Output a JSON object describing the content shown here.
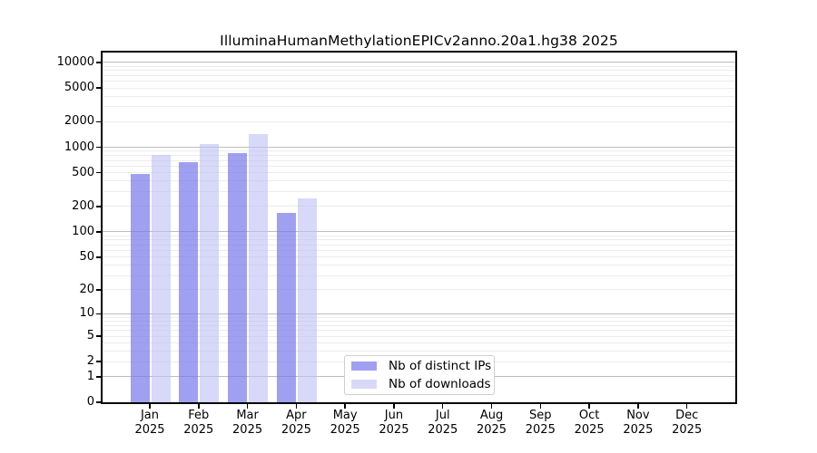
{
  "title": "IlluminaHumanMethylationEPICv2anno.20a1.hg38 2025",
  "chart_data": {
    "type": "bar",
    "title": "IlluminaHumanMethylationEPICv2anno.20a1.hg38 2025",
    "y_scale": "log10(1+x)",
    "grid": true,
    "legend_position": "inside-bottom-center",
    "xlabel": "",
    "ylabel": "",
    "ylim": [
      0,
      13000
    ],
    "y_ticks": [
      0,
      1,
      2,
      5,
      10,
      20,
      50,
      100,
      200,
      500,
      1000,
      2000,
      5000,
      10000
    ],
    "categories": [
      "Jan 2025",
      "Feb 2025",
      "Mar 2025",
      "Apr 2025",
      "May 2025",
      "Jun 2025",
      "Jul 2025",
      "Aug 2025",
      "Sep 2025",
      "Oct 2025",
      "Nov 2025",
      "Dec 2025"
    ],
    "series": [
      {
        "name": "Nb of distinct IPs",
        "color": "#7878ebb3",
        "values": [
          490,
          665,
          855,
          170,
          null,
          null,
          null,
          null,
          null,
          null,
          null,
          null
        ]
      },
      {
        "name": "Nb of downloads",
        "color": "#bebef599",
        "values": [
          810,
          1080,
          1440,
          250,
          null,
          null,
          null,
          null,
          null,
          null,
          null,
          null
        ]
      }
    ],
    "colors": {
      "grid_minor": "#ececec",
      "grid_major": "#bdbdbd",
      "axis": "#000000",
      "background": "#ffffff"
    }
  }
}
